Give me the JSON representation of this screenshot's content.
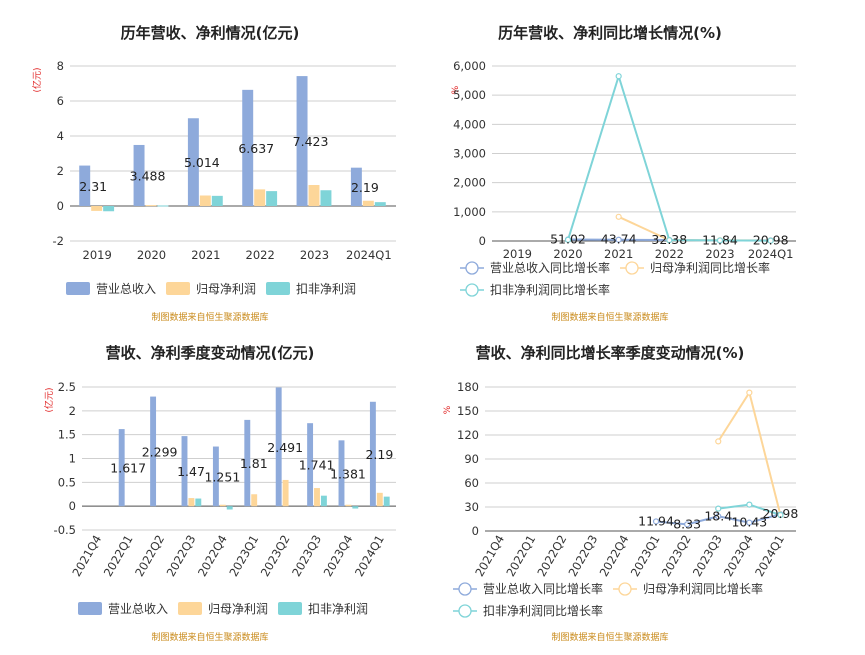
{
  "source_note": "制图数据来自恒生聚源数据库",
  "chart_data": [
    {
      "type": "bar",
      "title": "历年营收、净利情况(亿元)",
      "ylabel": "(亿元)",
      "ylim": [
        -2,
        8
      ],
      "yticks": [
        -2,
        0,
        2,
        4,
        6,
        8
      ],
      "categories": [
        "2019",
        "2020",
        "2021",
        "2022",
        "2023",
        "2024Q1"
      ],
      "series": [
        {
          "name": "营业总收入",
          "color": "#8eaadb",
          "values": [
            2.31,
            3.488,
            5.014,
            6.637,
            7.423,
            2.19
          ]
        },
        {
          "name": "归母净利润",
          "color": "#fdd699",
          "values": [
            -0.28,
            0.05,
            0.6,
            0.95,
            1.2,
            0.3
          ]
        },
        {
          "name": "扣非净利润",
          "color": "#7fd4d8",
          "values": [
            -0.3,
            0.03,
            0.58,
            0.85,
            0.9,
            0.22
          ]
        }
      ],
      "data_labels": [
        "2.31",
        "3.488",
        "5.014",
        "6.637",
        "7.423",
        "2.19"
      ],
      "grid": true,
      "legend": "bottom"
    },
    {
      "type": "line",
      "title": "历年营收、净利同比增长情况(%)",
      "ylabel": "%",
      "ylim": [
        0,
        6000
      ],
      "yticks": [
        0,
        1000,
        2000,
        3000,
        4000,
        5000,
        6000
      ],
      "ytick_labels": [
        "0",
        "1,000",
        "2,000",
        "3,000",
        "4,000",
        "5,000",
        "6,000"
      ],
      "categories": [
        "2019",
        "2020",
        "2021",
        "2022",
        "2023",
        "2024Q1"
      ],
      "series": [
        {
          "name": "营业总收入同比增长率",
          "color": "#8eaadb",
          "values": [
            null,
            51.02,
            43.74,
            32.38,
            11.84,
            20.98
          ]
        },
        {
          "name": "归母净利润同比增长率",
          "color": "#fdd699",
          "values": [
            null,
            null,
            830,
            30,
            25,
            15
          ]
        },
        {
          "name": "扣非净利润同比增长率",
          "color": "#7fd4d8",
          "values": [
            null,
            40,
            5650,
            30,
            20,
            10
          ]
        }
      ],
      "data_labels": [
        "",
        "51.02",
        "43.74",
        "32.38",
        "11.84",
        "20.98"
      ],
      "grid": true,
      "legend": "bottom"
    },
    {
      "type": "bar",
      "title": "营收、净利季度变动情况(亿元)",
      "ylabel": "(亿元)",
      "ylim": [
        -0.5,
        2.5
      ],
      "yticks": [
        -0.5,
        0,
        0.5,
        1,
        1.5,
        2,
        2.5
      ],
      "categories": [
        "2021Q4",
        "2022Q1",
        "2022Q2",
        "2022Q3",
        "2022Q4",
        "2023Q1",
        "2023Q2",
        "2023Q3",
        "2023Q4",
        "2024Q1"
      ],
      "series": [
        {
          "name": "营业总收入",
          "color": "#8eaadb",
          "values": [
            null,
            1.617,
            2.299,
            1.47,
            1.251,
            1.81,
            2.491,
            1.741,
            1.381,
            2.19
          ]
        },
        {
          "name": "归母净利润",
          "color": "#fdd699",
          "values": [
            null,
            null,
            null,
            0.17,
            0.03,
            0.25,
            0.55,
            0.38,
            0.03,
            0.28
          ]
        },
        {
          "name": "扣非净利润",
          "color": "#7fd4d8",
          "values": [
            null,
            null,
            null,
            0.16,
            -0.07,
            null,
            null,
            0.22,
            -0.05,
            0.2
          ]
        }
      ],
      "data_labels": [
        "",
        "1.617",
        "2.299",
        "1.47",
        "1.251",
        "1.81",
        "2.491",
        "1.741",
        "1.381",
        "2.19"
      ],
      "grid": true,
      "legend": "bottom"
    },
    {
      "type": "line",
      "title": "营收、净利同比增长率季度变动情况(%)",
      "ylabel": "%",
      "ylim": [
        0,
        180
      ],
      "yticks": [
        0,
        30,
        60,
        90,
        120,
        150,
        180
      ],
      "categories": [
        "2021Q4",
        "2022Q1",
        "2022Q2",
        "2022Q3",
        "2022Q4",
        "2023Q1",
        "2023Q2",
        "2023Q3",
        "2023Q4",
        "2024Q1"
      ],
      "series": [
        {
          "name": "营业总收入同比增长率",
          "color": "#8eaadb",
          "values": [
            null,
            null,
            null,
            null,
            null,
            11.94,
            8.33,
            18.4,
            10.43,
            20.98
          ]
        },
        {
          "name": "归母净利润同比增长率",
          "color": "#fdd699",
          "values": [
            null,
            null,
            null,
            null,
            null,
            null,
            null,
            112,
            173,
            20
          ]
        },
        {
          "name": "扣非净利润同比增长率",
          "color": "#7fd4d8",
          "values": [
            null,
            null,
            null,
            null,
            null,
            null,
            null,
            28,
            33,
            20
          ]
        }
      ],
      "data_labels": [
        "",
        "",
        "",
        "",
        "",
        "11.94",
        "8.33",
        "18.4",
        "10.43",
        "20.98"
      ],
      "grid": true,
      "legend": "bottom"
    }
  ]
}
